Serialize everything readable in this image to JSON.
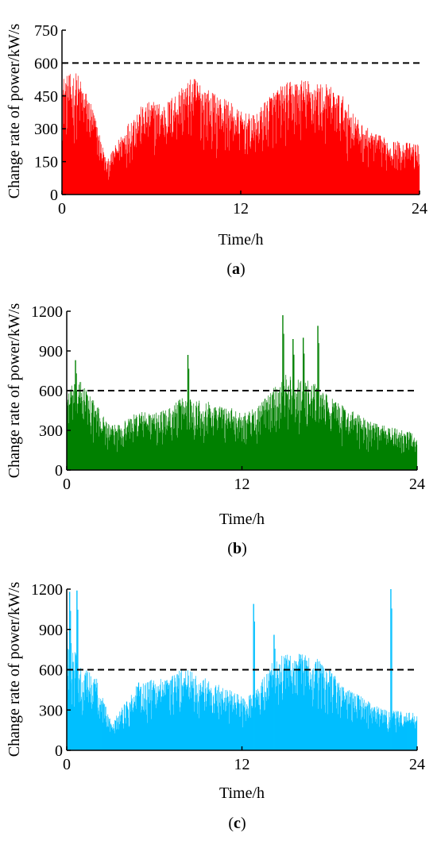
{
  "chart_data": [
    {
      "type": "area",
      "panel_label": "a",
      "xlabel": "Time/h",
      "ylabel": "Change rate of power/kW/s",
      "xlim": [
        0,
        24
      ],
      "ylim": [
        0,
        750
      ],
      "xticks": [
        0,
        12,
        24
      ],
      "yticks": [
        0,
        150,
        300,
        450,
        600,
        750
      ],
      "threshold": 600,
      "color": "#ff0000",
      "grid": false,
      "series": [
        {
          "values": [
            {
              "x": 0,
              "y": 540
            },
            {
              "x": 1,
              "y": 560
            },
            {
              "x": 2,
              "y": 420
            },
            {
              "x": 3,
              "y": 150
            },
            {
              "x": 4,
              "y": 280
            },
            {
              "x": 5,
              "y": 390
            },
            {
              "x": 6,
              "y": 430
            },
            {
              "x": 7,
              "y": 420
            },
            {
              "x": 8,
              "y": 500
            },
            {
              "x": 9,
              "y": 540
            },
            {
              "x": 10,
              "y": 470
            },
            {
              "x": 11,
              "y": 440
            },
            {
              "x": 12,
              "y": 380
            },
            {
              "x": 13,
              "y": 360
            },
            {
              "x": 14,
              "y": 470
            },
            {
              "x": 15,
              "y": 510
            },
            {
              "x": 16,
              "y": 530
            },
            {
              "x": 17,
              "y": 520
            },
            {
              "x": 18,
              "y": 500
            },
            {
              "x": 19,
              "y": 440
            },
            {
              "x": 20,
              "y": 330
            },
            {
              "x": 21,
              "y": 280
            },
            {
              "x": 22,
              "y": 250
            },
            {
              "x": 23,
              "y": 240
            },
            {
              "x": 24,
              "y": 230
            }
          ],
          "spikes": []
        }
      ]
    },
    {
      "type": "area",
      "panel_label": "b",
      "xlabel": "Time/h",
      "ylabel": "Change rate of power/kW/s",
      "xlim": [
        0,
        24
      ],
      "ylim": [
        0,
        1200
      ],
      "xticks": [
        0,
        12,
        24
      ],
      "yticks": [
        0,
        300,
        600,
        900,
        1200
      ],
      "threshold": 600,
      "color": "#008000",
      "grid": false,
      "series": [
        {
          "values": [
            {
              "x": 0,
              "y": 620
            },
            {
              "x": 1,
              "y": 680
            },
            {
              "x": 2,
              "y": 500
            },
            {
              "x": 3,
              "y": 330
            },
            {
              "x": 4,
              "y": 380
            },
            {
              "x": 5,
              "y": 450
            },
            {
              "x": 6,
              "y": 430
            },
            {
              "x": 7,
              "y": 470
            },
            {
              "x": 8,
              "y": 560
            },
            {
              "x": 9,
              "y": 540
            },
            {
              "x": 10,
              "y": 510
            },
            {
              "x": 11,
              "y": 480
            },
            {
              "x": 12,
              "y": 440
            },
            {
              "x": 13,
              "y": 470
            },
            {
              "x": 14,
              "y": 600
            },
            {
              "x": 15,
              "y": 720
            },
            {
              "x": 16,
              "y": 700
            },
            {
              "x": 17,
              "y": 650
            },
            {
              "x": 18,
              "y": 560
            },
            {
              "x": 19,
              "y": 480
            },
            {
              "x": 20,
              "y": 420
            },
            {
              "x": 21,
              "y": 360
            },
            {
              "x": 22,
              "y": 330
            },
            {
              "x": 23,
              "y": 300
            },
            {
              "x": 24,
              "y": 280
            }
          ],
          "spikes": [
            {
              "x": 0.6,
              "y": 830
            },
            {
              "x": 8.3,
              "y": 870
            },
            {
              "x": 14.8,
              "y": 1170
            },
            {
              "x": 15.5,
              "y": 990
            },
            {
              "x": 16.2,
              "y": 1000
            },
            {
              "x": 17.2,
              "y": 1090
            }
          ]
        }
      ]
    },
    {
      "type": "area",
      "panel_label": "c",
      "xlabel": "Time/h",
      "ylabel": "Change rate of power/kW/s",
      "xlim": [
        0,
        24
      ],
      "ylim": [
        0,
        1200
      ],
      "xticks": [
        0,
        12,
        24
      ],
      "yticks": [
        0,
        300,
        600,
        900,
        1200
      ],
      "threshold": 600,
      "color": "#00bfff",
      "grid": false,
      "series": [
        {
          "values": [
            {
              "x": 0,
              "y": 900
            },
            {
              "x": 1,
              "y": 620
            },
            {
              "x": 2,
              "y": 560
            },
            {
              "x": 3,
              "y": 220
            },
            {
              "x": 4,
              "y": 360
            },
            {
              "x": 5,
              "y": 520
            },
            {
              "x": 6,
              "y": 530
            },
            {
              "x": 7,
              "y": 540
            },
            {
              "x": 8,
              "y": 620
            },
            {
              "x": 9,
              "y": 560
            },
            {
              "x": 10,
              "y": 510
            },
            {
              "x": 11,
              "y": 460
            },
            {
              "x": 12,
              "y": 400
            },
            {
              "x": 13,
              "y": 460
            },
            {
              "x": 14,
              "y": 660
            },
            {
              "x": 15,
              "y": 720
            },
            {
              "x": 16,
              "y": 730
            },
            {
              "x": 17,
              "y": 700
            },
            {
              "x": 18,
              "y": 600
            },
            {
              "x": 19,
              "y": 480
            },
            {
              "x": 20,
              "y": 420
            },
            {
              "x": 21,
              "y": 340
            },
            {
              "x": 22,
              "y": 300
            },
            {
              "x": 23,
              "y": 290
            },
            {
              "x": 24,
              "y": 280
            }
          ],
          "spikes": [
            {
              "x": 0.2,
              "y": 1180
            },
            {
              "x": 0.7,
              "y": 1190
            },
            {
              "x": 12.8,
              "y": 1090
            },
            {
              "x": 14.2,
              "y": 860
            },
            {
              "x": 22.2,
              "y": 1200
            }
          ]
        }
      ]
    }
  ]
}
